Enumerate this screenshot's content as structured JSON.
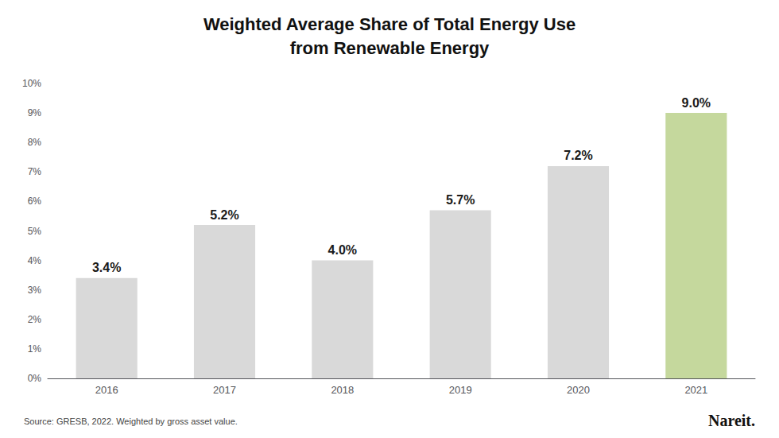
{
  "chart_data": {
    "type": "bar",
    "title": "Weighted Average Share of Total Energy Use\nfrom Renewable Energy",
    "categories": [
      "2016",
      "2017",
      "2018",
      "2019",
      "2020",
      "2021"
    ],
    "values": [
      3.4,
      5.2,
      4.0,
      5.7,
      7.2,
      9.0
    ],
    "value_labels": [
      "3.4%",
      "5.2%",
      "4.0%",
      "5.7%",
      "7.2%",
      "9.0%"
    ],
    "data_labels": true,
    "colors": [
      "#d9d9d9",
      "#d9d9d9",
      "#d9d9d9",
      "#d9d9d9",
      "#d9d9d9",
      "#c5d89d"
    ],
    "ylim": [
      0,
      10
    ],
    "yticks": [
      {
        "value": 0,
        "label": "0%"
      },
      {
        "value": 1,
        "label": "1%"
      },
      {
        "value": 2,
        "label": "2%"
      },
      {
        "value": 3,
        "label": "3%"
      },
      {
        "value": 4,
        "label": "4%"
      },
      {
        "value": 5,
        "label": "5%"
      },
      {
        "value": 6,
        "label": "6%"
      },
      {
        "value": 7,
        "label": "7%"
      },
      {
        "value": 8,
        "label": "8%"
      },
      {
        "value": 9,
        "label": "9%"
      },
      {
        "value": 10,
        "label": "10%"
      }
    ],
    "grid": false,
    "annotations": [
      "Source: GRESB, 2022. Weighted by gross asset value.",
      "Nareit."
    ]
  }
}
